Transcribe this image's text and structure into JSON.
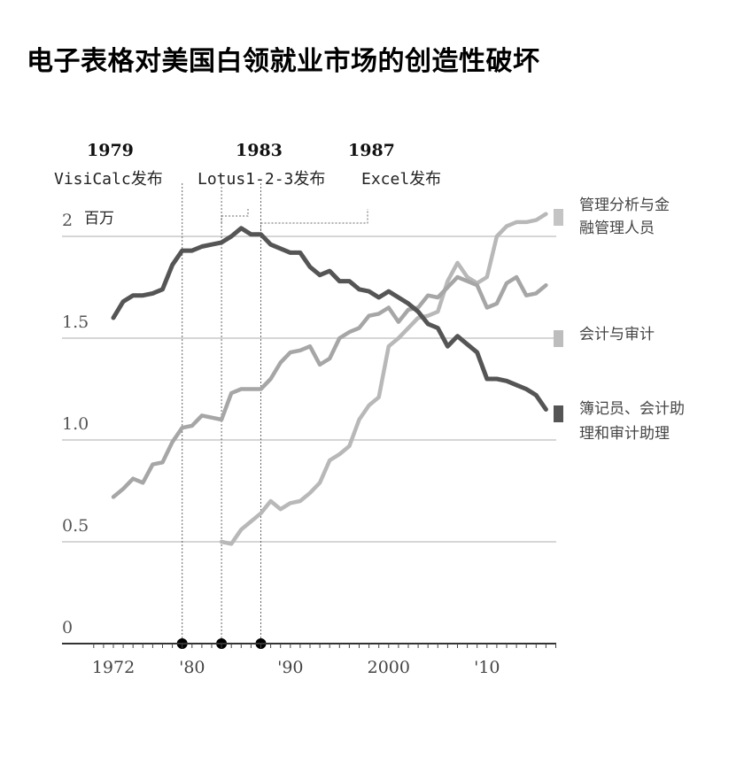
{
  "chart_data": {
    "type": "line",
    "title": "电子表格对美国白领就业市场的创造性破坏",
    "unit_label": "百万",
    "x_ticks": [
      {
        "x": 1972,
        "label": "1972"
      },
      {
        "x": 1980,
        "label": "'80"
      },
      {
        "x": 1990,
        "label": "'90"
      },
      {
        "x": 2000,
        "label": "2000"
      },
      {
        "x": 2010,
        "label": "'10"
      }
    ],
    "y_ticks": [
      {
        "y": 0,
        "label": "0"
      },
      {
        "y": 0.5,
        "label": "0.5"
      },
      {
        "y": 1.0,
        "label": "1.0"
      },
      {
        "y": 1.5,
        "label": "1.5"
      },
      {
        "y": 2,
        "label": "2"
      }
    ],
    "xlim": [
      1970,
      2017.5
    ],
    "ylim": [
      0,
      2.2
    ],
    "annotations": [
      {
        "year": 1979,
        "year_label": "1979",
        "label": "VisiCalc发布"
      },
      {
        "year": 1983,
        "year_label": "1983",
        "label": "Lotus1-2-3发布"
      },
      {
        "year": 1987,
        "year_label": "1987",
        "label": "Excel发布"
      }
    ],
    "series": [
      {
        "name": "管理分析与金融管理人员",
        "color": "#b8b8b8",
        "x": [
          1983,
          1984,
          1985,
          1986,
          1987,
          1988,
          1989,
          1990,
          1991,
          1992,
          1993,
          1994,
          1995,
          1996,
          1997,
          1998,
          1999,
          2000,
          2001,
          2002,
          2003,
          2004,
          2005,
          2006,
          2007,
          2008,
          2009,
          2010,
          2011,
          2012,
          2013,
          2014,
          2015,
          2016
        ],
        "y": [
          0.5,
          0.49,
          0.56,
          0.6,
          0.64,
          0.7,
          0.66,
          0.69,
          0.7,
          0.74,
          0.79,
          0.9,
          0.93,
          0.97,
          1.1,
          1.17,
          1.21,
          1.46,
          1.5,
          1.55,
          1.6,
          1.61,
          1.63,
          1.78,
          1.87,
          1.8,
          1.77,
          1.8,
          2.0,
          2.05,
          2.07,
          2.07,
          2.08,
          2.11
        ]
      },
      {
        "name": "会计与审计",
        "color": "#a6a6a6",
        "x": [
          1972,
          1973,
          1974,
          1975,
          1976,
          1977,
          1978,
          1979,
          1980,
          1981,
          1982,
          1983,
          1984,
          1985,
          1986,
          1987,
          1988,
          1989,
          1990,
          1991,
          1992,
          1993,
          1994,
          1995,
          1996,
          1997,
          1998,
          1999,
          2000,
          2001,
          2002,
          2003,
          2004,
          2005,
          2006,
          2007,
          2008,
          2009,
          2010,
          2011,
          2012,
          2013,
          2014,
          2015,
          2016
        ],
        "y": [
          0.72,
          0.76,
          0.81,
          0.79,
          0.88,
          0.89,
          0.99,
          1.06,
          1.07,
          1.12,
          1.11,
          1.1,
          1.23,
          1.25,
          1.25,
          1.25,
          1.3,
          1.38,
          1.43,
          1.44,
          1.46,
          1.37,
          1.4,
          1.5,
          1.53,
          1.55,
          1.61,
          1.62,
          1.65,
          1.58,
          1.64,
          1.65,
          1.71,
          1.7,
          1.75,
          1.8,
          1.78,
          1.76,
          1.65,
          1.67,
          1.77,
          1.8,
          1.71,
          1.72,
          1.76
        ]
      },
      {
        "name": "簿记员、会计助理和审计助理",
        "color": "#555555",
        "x": [
          1972,
          1973,
          1974,
          1975,
          1976,
          1977,
          1978,
          1979,
          1980,
          1981,
          1982,
          1983,
          1984,
          1985,
          1986,
          1987,
          1988,
          1989,
          1990,
          1991,
          1992,
          1993,
          1994,
          1995,
          1996,
          1997,
          1998,
          1999,
          2000,
          2001,
          2002,
          2003,
          2004,
          2005,
          2006,
          2007,
          2008,
          2009,
          2010,
          2011,
          2012,
          2013,
          2014,
          2015,
          2016
        ],
        "y": [
          1.6,
          1.68,
          1.71,
          1.71,
          1.72,
          1.74,
          1.86,
          1.93,
          1.93,
          1.95,
          1.96,
          1.97,
          2.0,
          2.04,
          2.01,
          2.01,
          1.96,
          1.94,
          1.92,
          1.92,
          1.85,
          1.81,
          1.83,
          1.78,
          1.78,
          1.74,
          1.73,
          1.7,
          1.73,
          1.7,
          1.67,
          1.63,
          1.57,
          1.55,
          1.46,
          1.51,
          1.47,
          1.43,
          1.3,
          1.3,
          1.29,
          1.27,
          1.25,
          1.22,
          1.15
        ]
      }
    ],
    "legend": [
      {
        "text": "管理分析与金",
        "text2": "融管理人员",
        "color": "#c4c4c4",
        "y_value": 2.11
      },
      {
        "text": "会计与审计",
        "text2": "",
        "color": "#bdbdbd",
        "y_value": 1.52
      },
      {
        "text": "簿记员、会计助",
        "text2": "理和审计助理",
        "color": "#555555",
        "y_value": 1.15
      }
    ],
    "grid": true,
    "legend_placement": "right"
  }
}
